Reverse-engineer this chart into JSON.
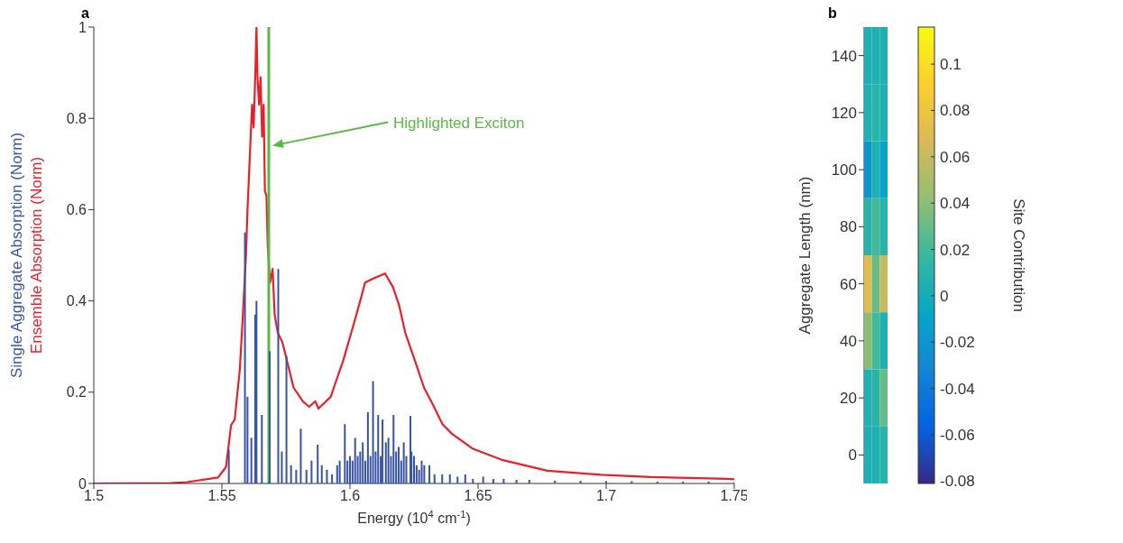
{
  "chart_data": [
    {
      "type": "line",
      "title": "a",
      "xlabel": "Energy (10$^{4}$ cm$^{-1}$)",
      "xlim": [
        1.5,
        1.75
      ],
      "xticks": [
        1.5,
        1.55,
        1.6,
        1.65,
        1.7,
        1.75
      ],
      "ylim": [
        0,
        1
      ],
      "yticks": [
        0,
        0.2,
        0.4,
        0.6,
        0.8,
        1
      ],
      "series": [
        {
          "name": "Single Aggregate Absorption (Norm)",
          "type": "bar",
          "color": "#3953a4",
          "x": [
            1.5527,
            1.559,
            1.56,
            1.5615,
            1.563,
            1.5635,
            1.5656,
            1.5687,
            1.572,
            1.5734,
            1.5752,
            1.577,
            1.579,
            1.5808,
            1.583,
            1.585,
            1.5874,
            1.589,
            1.591,
            1.593,
            1.595,
            1.596,
            1.598,
            1.599,
            1.6,
            1.601,
            1.602,
            1.603,
            1.604,
            1.605,
            1.606,
            1.607,
            1.608,
            1.609,
            1.61,
            1.611,
            1.612,
            1.6127,
            1.614,
            1.615,
            1.616,
            1.617,
            1.618,
            1.619,
            1.62,
            1.621,
            1.622,
            1.6236,
            1.624,
            1.625,
            1.626,
            1.627,
            1.628,
            1.629,
            1.631,
            1.633,
            1.636,
            1.639,
            1.642,
            1.645,
            1.648,
            1.652,
            1.656,
            1.66,
            1.665,
            1.67,
            1.68,
            1.69,
            1.7,
            1.71,
            1.72,
            1.73,
            1.74,
            1.75
          ],
          "values": [
            0.074,
            0.55,
            0.19,
            0.1,
            0.37,
            0.4,
            0.15,
            0.29,
            0.47,
            0.07,
            0.28,
            0.04,
            0.03,
            0.12,
            0.03,
            0.05,
            0.085,
            0.04,
            0.03,
            0.02,
            0.04,
            0.05,
            0.13,
            0.05,
            0.06,
            0.05,
            0.1,
            0.06,
            0.07,
            0.09,
            0.05,
            0.156,
            0.06,
            0.224,
            0.07,
            0.15,
            0.06,
            0.14,
            0.09,
            0.1,
            0.06,
            0.15,
            0.07,
            0.08,
            0.05,
            0.09,
            0.06,
            0.148,
            0.07,
            0.06,
            0.04,
            0.03,
            0.05,
            0.04,
            0.04,
            0.02,
            0.02,
            0.02,
            0.015,
            0.02,
            0.01,
            0.015,
            0.01,
            0.01,
            0.008,
            0.008,
            0.006,
            0.006,
            0.005,
            0.005,
            0.004,
            0.004,
            0.004,
            0.003
          ]
        },
        {
          "name": "Ensemble Absorption (Norm)",
          "type": "line",
          "color": "#e8202a",
          "x": [
            1.5,
            1.53,
            1.5364,
            1.5485,
            1.5516,
            1.5536,
            1.555,
            1.557,
            1.5582,
            1.5594,
            1.56,
            1.5607,
            1.5613,
            1.5618,
            1.5624,
            1.563,
            1.5635,
            1.5639,
            1.5645,
            1.5651,
            1.5657,
            1.5663,
            1.5668,
            1.5674,
            1.5679,
            1.5688,
            1.5698,
            1.5706,
            1.5718,
            1.5736,
            1.5758,
            1.578,
            1.5816,
            1.5841,
            1.5865,
            1.5877,
            1.5925,
            1.5937,
            1.5974,
            1.601,
            1.6035,
            1.6059,
            1.6095,
            1.6137,
            1.6168,
            1.6192,
            1.6216,
            1.6253,
            1.6289,
            1.632,
            1.6361,
            1.64,
            1.648,
            1.6597,
            1.677,
            1.698,
            1.7174,
            1.7476,
            1.75
          ],
          "values": [
            0,
            0.001,
            0.003,
            0.013,
            0.036,
            0.128,
            0.14,
            0.25,
            0.37,
            0.5,
            0.6,
            0.69,
            0.77,
            0.83,
            0.78,
            0.89,
            1.0,
            0.89,
            0.83,
            0.89,
            0.76,
            0.83,
            0.64,
            0.63,
            0.52,
            0.44,
            0.47,
            0.37,
            0.33,
            0.31,
            0.26,
            0.21,
            0.18,
            0.168,
            0.18,
            0.164,
            0.19,
            0.21,
            0.27,
            0.34,
            0.39,
            0.44,
            0.45,
            0.46,
            0.43,
            0.39,
            0.33,
            0.27,
            0.21,
            0.177,
            0.13,
            0.108,
            0.076,
            0.051,
            0.028,
            0.019,
            0.014,
            0.01,
            0.009
          ]
        }
      ],
      "ref_lines": [
        {
          "axis": "x",
          "value": 1.5683,
          "color": "#5ab946"
        }
      ],
      "annotations": [
        "Highlighted Exciton"
      ]
    },
    {
      "type": "heatmap",
      "title": "b",
      "ylabel": "Aggregate Length (nm)",
      "clabel": "Site Contribution",
      "categories": [
        null,
        null,
        null
      ],
      "y_categories": [
        "140",
        "120",
        "100",
        "80",
        "60",
        "40",
        "20",
        "0"
      ],
      "cells": [
        [
          0.005,
          0.005,
          0.005
        ],
        [
          0.005,
          0.01,
          0.005
        ],
        [
          -0.02,
          0.005,
          -0.01
        ],
        [
          0.01,
          0.02,
          0.01
        ],
        [
          0.07,
          0.03,
          0.06
        ],
        [
          0.04,
          0.02,
          0.005
        ],
        [
          0.005,
          0.01,
          0.03
        ],
        [
          0.005,
          0.005,
          0.01
        ]
      ],
      "clim": [
        -0.081,
        0.116
      ],
      "cticks": [
        -0.08,
        -0.06,
        -0.04,
        -0.02,
        0,
        0.02,
        0.04,
        0.06,
        0.08,
        0.1
      ]
    }
  ]
}
